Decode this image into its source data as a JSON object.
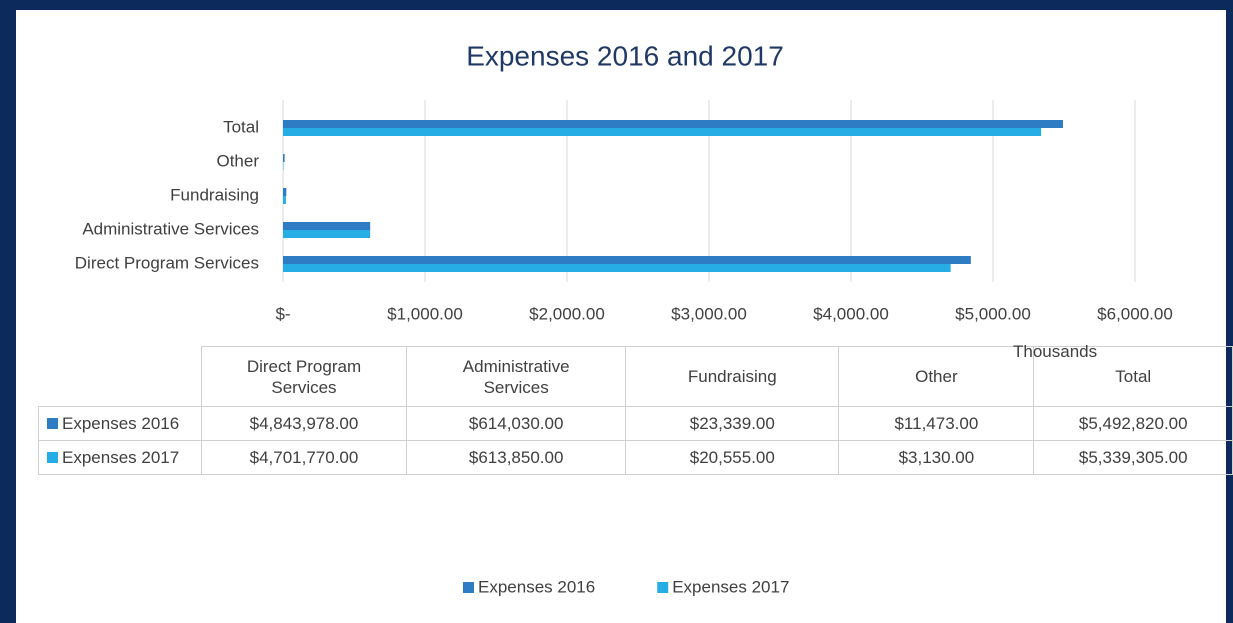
{
  "chart_data": {
    "type": "bar",
    "orientation": "horizontal",
    "title": "Expenses 2016 and 2017",
    "categories": [
      "Direct Program Services",
      "Administrative Services",
      "Fundraising",
      "Other",
      "Total"
    ],
    "series": [
      {
        "name": "Expenses 2016",
        "color": "#2e7cc4",
        "values": [
          4843.978,
          614.03,
          23.339,
          11.473,
          5492.82
        ],
        "value_labels": [
          "$4,843,978.00",
          "$614,030.00",
          "$23,339.00",
          "$11,473.00",
          "$5,492,820.00"
        ]
      },
      {
        "name": "Expenses 2017",
        "color": "#27ade6",
        "values": [
          4701.77,
          613.85,
          20.555,
          3.13,
          5339.305
        ],
        "value_labels": [
          "$4,701,770.00",
          "$613,850.00",
          "$20,555.00",
          "$3,130.00",
          "$5,339,305.00"
        ]
      }
    ],
    "xlim": [
      0,
      6000
    ],
    "xticks": [
      {
        "value": 0,
        "label": "$-"
      },
      {
        "value": 1000,
        "label": "$1,000.00"
      },
      {
        "value": 2000,
        "label": "$2,000.00"
      },
      {
        "value": 3000,
        "label": "$3,000.00"
      },
      {
        "value": 4000,
        "label": "$4,000.00"
      },
      {
        "value": 5000,
        "label": "$5,000.00"
      },
      {
        "value": 6000,
        "label": "$6,000.00"
      }
    ],
    "x_unit_label": "Thousands",
    "grid": true,
    "data_table": true,
    "legend": "bottom"
  }
}
